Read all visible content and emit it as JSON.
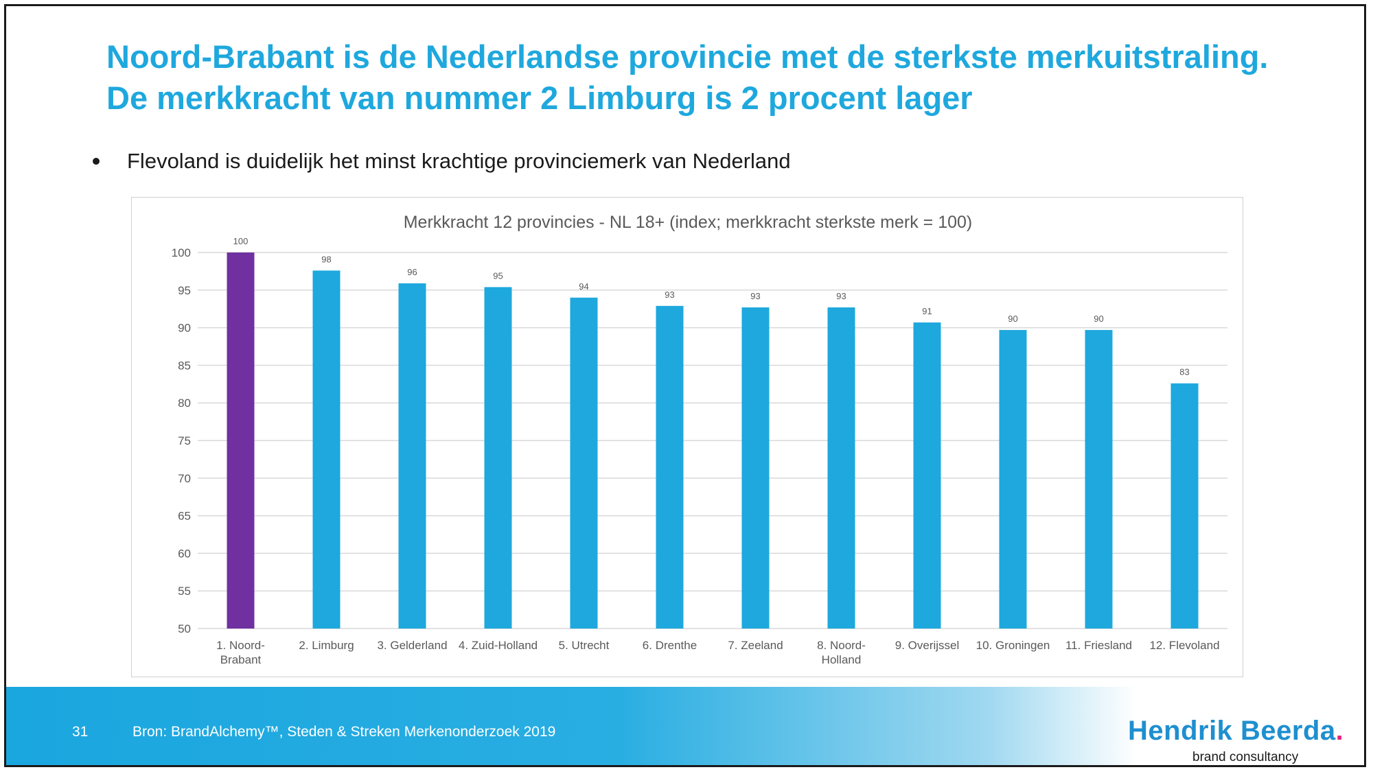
{
  "slide": {
    "title_line1": "Noord-Brabant is de Nederlandse provincie met de sterkste merkuitstraling.",
    "title_line2": "De merkkracht van nummer 2 Limburg is 2 procent lager",
    "bullet": "Flevoland is duidelijk het minst krachtige provinciemerk van Nederland"
  },
  "footer": {
    "page_number": "31",
    "source": "Bron: BrandAlchemy™, Steden & Streken Merkenonderzoek 2019",
    "logo_name": "Hendrik Beerda",
    "logo_dot": ".",
    "logo_tagline": "brand consultancy"
  },
  "colors": {
    "title": "#1ea8dd",
    "bar_default": "#1ea8dd",
    "bar_highlight": "#7030a0",
    "gridline": "#d9d9d9",
    "axis_text": "#595959"
  },
  "chart_data": {
    "type": "bar",
    "title": "Merkkracht 12 provincies - NL 18+ (index; merkkracht sterkste merk = 100)",
    "categories": [
      [
        "1. Noord-",
        "Brabant"
      ],
      [
        "2. Limburg"
      ],
      [
        "3. Gelderland"
      ],
      [
        "4. Zuid-Holland"
      ],
      [
        "5. Utrecht"
      ],
      [
        "6. Drenthe"
      ],
      [
        "7. Zeeland"
      ],
      [
        "8. Noord-",
        "Holland"
      ],
      [
        "9. Overijssel"
      ],
      [
        "10. Groningen"
      ],
      [
        "11. Friesland"
      ],
      [
        "12. Flevoland"
      ]
    ],
    "values": [
      100,
      97.6,
      95.9,
      95.4,
      94.0,
      92.9,
      92.7,
      92.7,
      90.7,
      89.7,
      89.7,
      82.6
    ],
    "data_labels": [
      "100",
      "98",
      "96",
      "95",
      "94",
      "93",
      "93",
      "93",
      "91",
      "90",
      "90",
      "83"
    ],
    "highlight_index": 0,
    "ylim": [
      50,
      100
    ],
    "yticks": [
      100,
      95,
      90,
      85,
      80,
      75,
      70,
      65,
      60,
      55,
      50
    ],
    "grid": true,
    "legend": "none"
  }
}
